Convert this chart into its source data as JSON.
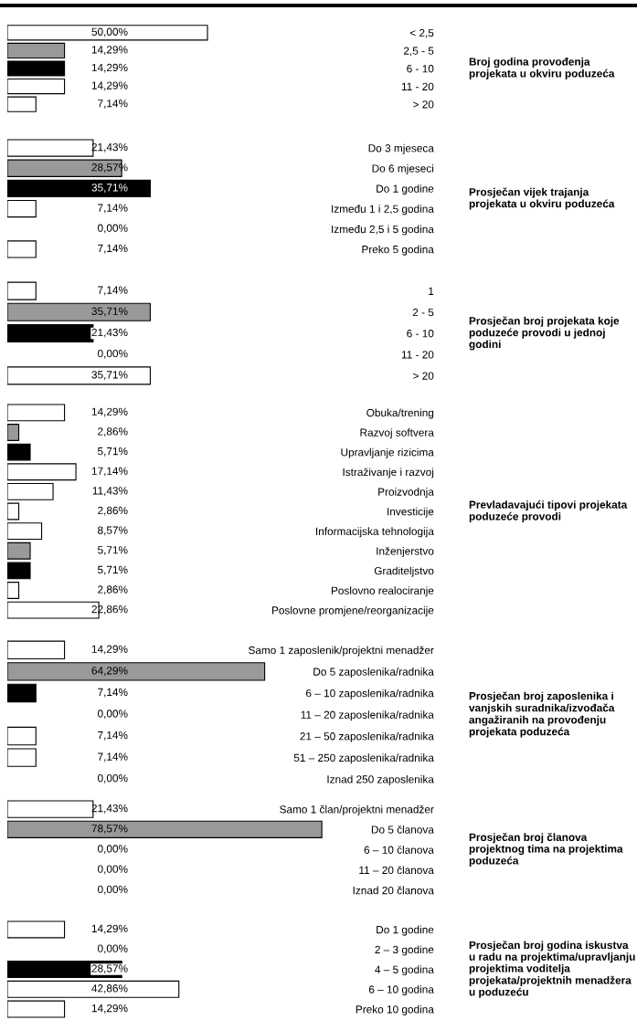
{
  "chart_data": [
    {
      "type": "bar",
      "orientation": "horizontal",
      "y2label": "Broj godina provođenja projekata u okviru poduzeća",
      "categories": [
        "< 2,5",
        "2,5 - 5",
        "6 - 10",
        "11 - 20",
        "> 20"
      ],
      "values": [
        50.0,
        14.29,
        14.29,
        14.29,
        7.14
      ],
      "value_labels": [
        "50,00%",
        "14,29%",
        "14,29%",
        "14,29%",
        "7,14%"
      ],
      "colors": [
        "#ffffff",
        "#999999",
        "#000000",
        "#ffffff",
        "#ffffff"
      ],
      "tick_labels": "y"
    },
    {
      "type": "bar",
      "orientation": "horizontal",
      "y2label": "Prosječan vijek trajanja projekata u okviru poduzeća",
      "categories": [
        "Do 3 mjeseca",
        "Do 6 mjeseci",
        "Do 1 godine",
        "Između 1 i 2,5 godina",
        "Između 2,5 i 5 godina",
        "Preko 5 godina"
      ],
      "values": [
        21.43,
        28.57,
        35.71,
        7.14,
        0.0,
        7.14
      ],
      "value_labels": [
        "21,43%",
        "28,57%",
        "35,71%",
        "7,14%",
        "0,00%",
        "7,14%"
      ],
      "colors": [
        "#ffffff",
        "#999999",
        "#000000",
        "#ffffff",
        "#ffffff",
        "#ffffff"
      ],
      "tick_labels": "y"
    },
    {
      "type": "bar",
      "orientation": "horizontal",
      "y2label": "Prosječan broj projekata koje poduzeće provodi u jednoj godini",
      "categories": [
        "1",
        "2 - 5",
        "6 - 10",
        "11 - 20",
        "> 20"
      ],
      "values": [
        7.14,
        35.71,
        21.43,
        0.0,
        35.71
      ],
      "value_labels": [
        "7,14%",
        "35,71%",
        "21,43%",
        "0,00%",
        "35,71%"
      ],
      "colors": [
        "#ffffff",
        "#999999",
        "#000000",
        "#ffffff",
        "#ffffff"
      ],
      "tick_labels": "y"
    },
    {
      "type": "bar",
      "orientation": "horizontal",
      "y2label": "Prevladavajući tipovi projekata poduzeće provodi",
      "categories": [
        "Obuka/trening",
        "Razvoj softvera",
        "Upravljanje rizicima",
        "Istraživanje i razvoj",
        "Proizvodnja",
        "Investicije",
        "Informacijska tehnologija",
        "Inženjerstvo",
        "Graditeljstvo",
        "Poslovno realociranje",
        "Poslovne promjene/reorganizacije"
      ],
      "values": [
        14.29,
        2.86,
        5.71,
        17.14,
        11.43,
        2.86,
        8.57,
        5.71,
        5.71,
        2.86,
        22.86
      ],
      "value_labels": [
        "14,29%",
        "2,86%",
        "5,71%",
        "17,14%",
        "11,43%",
        "2,86%",
        "8,57%",
        "5,71%",
        "5,71%",
        "2,86%",
        "22,86%"
      ],
      "colors": [
        "#ffffff",
        "#999999",
        "#000000",
        "#ffffff",
        "#ffffff",
        "#ffffff",
        "#ffffff",
        "#999999",
        "#000000",
        "#ffffff",
        "#ffffff"
      ],
      "tick_labels": "y"
    },
    {
      "type": "bar",
      "orientation": "horizontal",
      "y2label": "Prosječan broj zaposlenika i vanjskih suradnika/izvođača angažiranih na provođenju projekata poduzeća",
      "categories": [
        "Samo 1 zaposlenik/projektni menadžer",
        "Do 5 zaposlenika/radnika",
        "6 – 10 zaposlenika/radnika",
        "11 – 20 zaposlenika/radnika",
        "21 – 50 zaposlenika/radnika",
        "51 – 250 zaposlenika/radnika",
        "Iznad 250 zaposlenika"
      ],
      "values": [
        14.29,
        64.29,
        7.14,
        0.0,
        7.14,
        7.14,
        0.0
      ],
      "value_labels": [
        "14,29%",
        "64,29%",
        "7,14%",
        "0,00%",
        "7,14%",
        "7,14%",
        "0,00%"
      ],
      "colors": [
        "#ffffff",
        "#999999",
        "#000000",
        "#ffffff",
        "#ffffff",
        "#ffffff",
        "#ffffff"
      ],
      "tick_labels": "y"
    },
    {
      "type": "bar",
      "orientation": "horizontal",
      "y2label": "Prosječan broj članova projektnog tima na projektima poduzeća",
      "categories": [
        "Samo 1 član/projektni menadžer",
        "Do 5 članova",
        "6 – 10 članova",
        "11 – 20 članova",
        "Iznad 20 članova"
      ],
      "values": [
        21.43,
        78.57,
        0.0,
        0.0,
        0.0
      ],
      "value_labels": [
        "21,43%",
        "78,57%",
        "0,00%",
        "0,00%",
        "0,00%"
      ],
      "colors": [
        "#ffffff",
        "#999999",
        "#ffffff",
        "#ffffff",
        "#ffffff"
      ],
      "tick_labels": "y"
    },
    {
      "type": "bar",
      "orientation": "horizontal",
      "y2label": "Prosječan broj godina iskustva u radu na projektima/upravljanju projektima voditelja projekata/projektnih menadžera u poduzeću",
      "categories": [
        "Do 1 godine",
        "2 – 3 godine",
        "4 – 5 godina",
        "6 – 10 godina",
        "Preko 10 godina"
      ],
      "values": [
        14.29,
        0.0,
        28.57,
        42.86,
        14.29
      ],
      "value_labels": [
        "14,29%",
        "0,00%",
        "28,57%",
        "42,86%",
        "14,29%"
      ],
      "colors": [
        "#ffffff",
        "#999999",
        "#000000",
        "#ffffff",
        "#ffffff"
      ],
      "tick_labels": "y"
    }
  ]
}
